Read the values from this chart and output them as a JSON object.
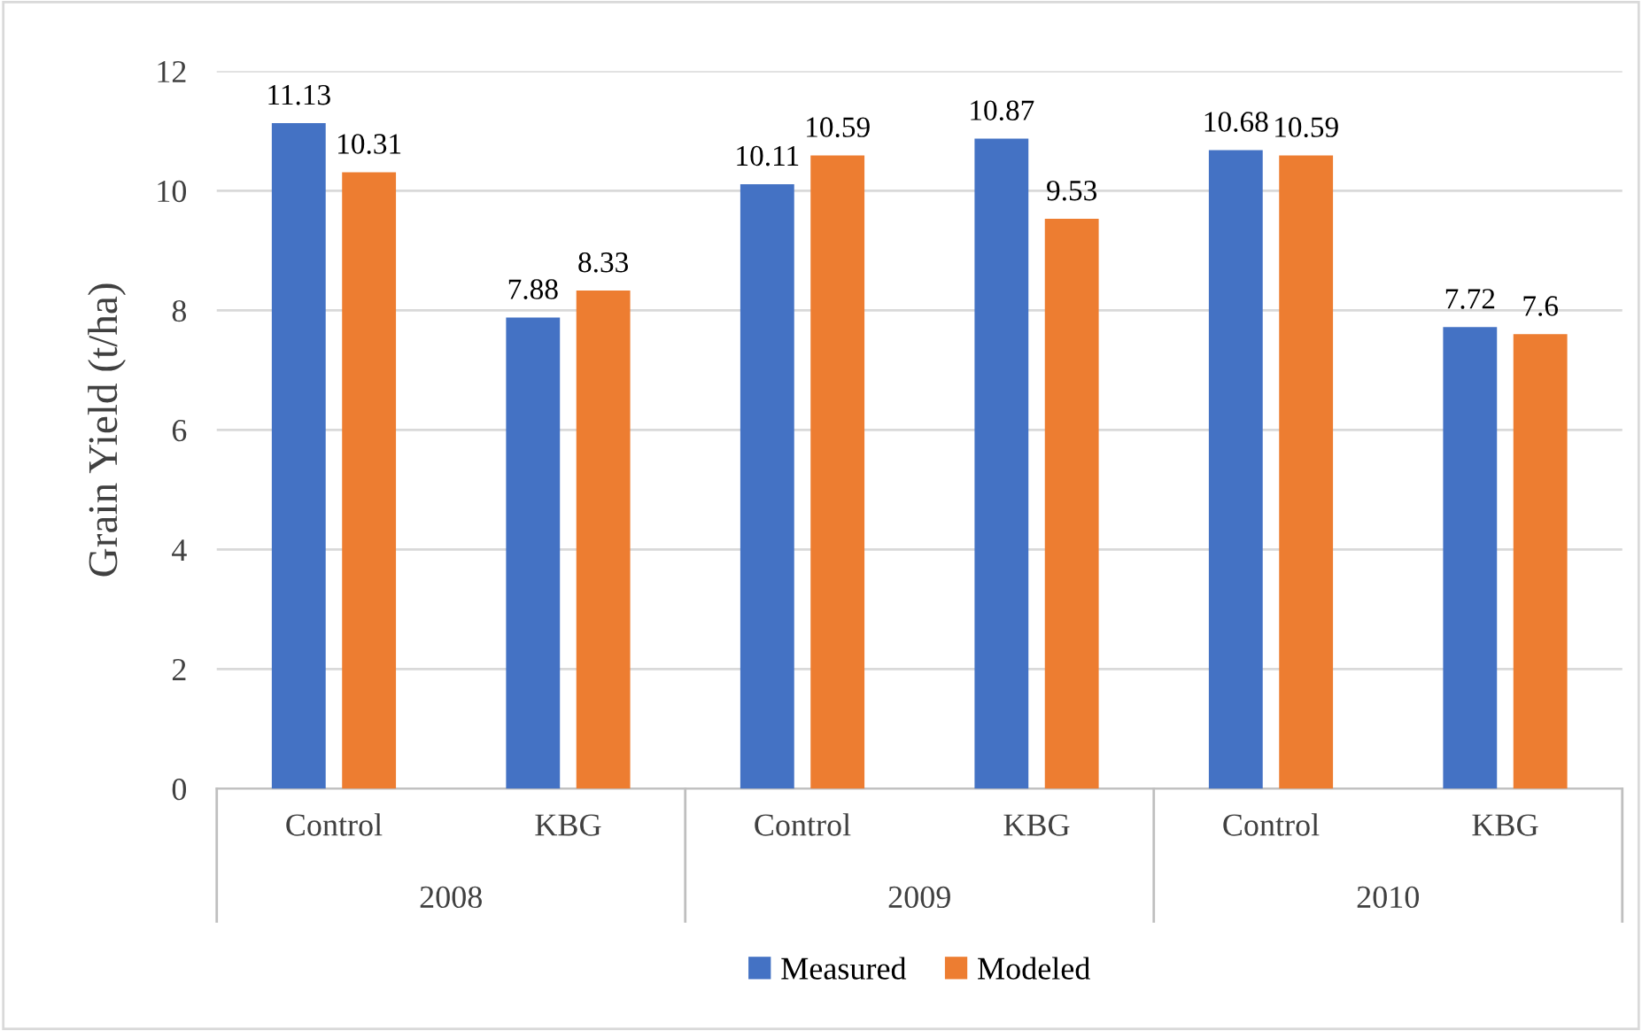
{
  "chart_data": {
    "type": "bar",
    "ylabel": "Grain Yield (t/ha)",
    "categories": [
      "Control",
      "KBG",
      "Control",
      "KBG",
      "Control",
      "KBG"
    ],
    "series": [
      {
        "name": "Measured",
        "color": "#4472c4",
        "values": [
          11.13,
          7.88,
          10.11,
          10.87,
          10.68,
          7.72
        ]
      },
      {
        "name": "Modeled",
        "color": "#ed7d31",
        "values": [
          10.31,
          8.33,
          10.59,
          9.53,
          10.59,
          7.6
        ]
      }
    ],
    "annotations": [
      "2008",
      "2009",
      "2010"
    ],
    "ylim": [
      0,
      12
    ],
    "yticks": [
      0,
      2,
      4,
      6,
      8,
      10,
      12
    ],
    "grid": "y",
    "data_labels": true,
    "legend": "bottom"
  }
}
